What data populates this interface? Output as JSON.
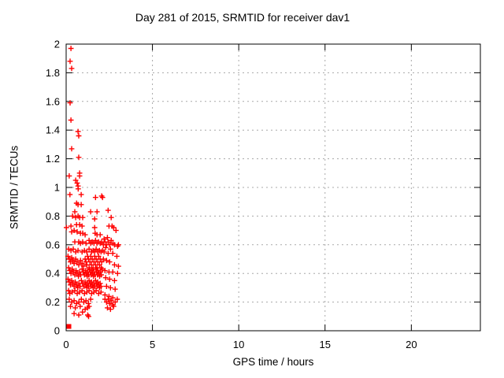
{
  "page": {
    "background": "#ffffff"
  },
  "chart_data": {
    "type": "scatter",
    "title": "Day 281 of 2015, SRMTID for receiver dav1",
    "xlabel": "GPS time / hours",
    "ylabel": "SRMTID / TECUs",
    "xlim": [
      0,
      24
    ],
    "ylim": [
      0,
      2
    ],
    "grid": true,
    "legend": "none",
    "xticks": [
      {
        "v": 0,
        "label": "0"
      },
      {
        "v": 5,
        "label": "5"
      },
      {
        "v": 10,
        "label": "10"
      },
      {
        "v": 15,
        "label": "15"
      },
      {
        "v": 20,
        "label": "20"
      }
    ],
    "yticks": [
      {
        "v": 0,
        "label": "0"
      },
      {
        "v": 0.2,
        "label": "0.2"
      },
      {
        "v": 0.4,
        "label": "0.4"
      },
      {
        "v": 0.6,
        "label": "0.6"
      },
      {
        "v": 0.8,
        "label": "0.8"
      },
      {
        "v": 1,
        "label": "1"
      },
      {
        "v": 1.2,
        "label": "1.2"
      },
      {
        "v": 1.4,
        "label": "1.4"
      },
      {
        "v": 1.6,
        "label": "1.6"
      },
      {
        "v": 1.8,
        "label": "1.8"
      },
      {
        "v": 2,
        "label": "2"
      }
    ],
    "colors": {
      "marker": "#ff0000",
      "grid": "#a8a8a8",
      "axis": "#000000",
      "text": "#000000"
    },
    "series": [
      {
        "name": "SRMTID values",
        "marker": "plus",
        "color": "#ff0000",
        "points": [
          [
            0.28,
            1.97
          ],
          [
            0.23,
            1.88
          ],
          [
            0.32,
            1.83
          ],
          [
            0.23,
            1.59
          ],
          [
            0.28,
            1.47
          ],
          [
            0.32,
            1.27
          ],
          [
            0.18,
            1.08
          ],
          [
            0.69,
            1.39
          ],
          [
            0.73,
            1.36
          ],
          [
            0.73,
            1.21
          ],
          [
            0.78,
            1.1
          ],
          [
            0.78,
            1.08
          ],
          [
            0.55,
            1.05
          ],
          [
            0.64,
            1.03
          ],
          [
            0.69,
            1.01
          ],
          [
            0.7,
            0.99
          ],
          [
            0.87,
            0.95
          ],
          [
            0.22,
            0.95
          ],
          [
            1.7,
            0.93
          ],
          [
            2.06,
            0.94
          ],
          [
            2.11,
            0.93
          ],
          [
            0.6,
            0.89
          ],
          [
            0.69,
            0.88
          ],
          [
            0.87,
            0.88
          ],
          [
            0.5,
            0.83
          ],
          [
            1.42,
            0.83
          ],
          [
            1.79,
            0.83
          ],
          [
            2.43,
            0.84
          ],
          [
            0.37,
            0.8
          ],
          [
            0.55,
            0.79
          ],
          [
            0.69,
            0.8
          ],
          [
            0.78,
            0.79
          ],
          [
            0.96,
            0.79
          ],
          [
            1.65,
            0.78
          ],
          [
            2.61,
            0.79
          ],
          [
            0.02,
            0.72
          ],
          [
            0.28,
            0.73
          ],
          [
            0.6,
            0.74
          ],
          [
            0.78,
            0.74
          ],
          [
            0.92,
            0.73
          ],
          [
            1.65,
            0.72
          ],
          [
            2.48,
            0.73
          ],
          [
            2.66,
            0.73
          ],
          [
            2.75,
            0.72
          ],
          [
            2.89,
            0.7
          ],
          [
            0.32,
            0.69
          ],
          [
            0.46,
            0.7
          ],
          [
            0.64,
            0.69
          ],
          [
            0.83,
            0.68
          ],
          [
            0.96,
            0.68
          ],
          [
            1.1,
            0.67
          ],
          [
            1.68,
            0.68
          ],
          [
            1.79,
            0.67
          ],
          [
            1.97,
            0.67
          ],
          [
            2.2,
            0.64
          ],
          [
            2.39,
            0.65
          ],
          [
            2.61,
            0.63
          ],
          [
            0.5,
            0.62
          ],
          [
            0.73,
            0.62
          ],
          [
            0.83,
            0.61
          ],
          [
            0.96,
            0.62
          ],
          [
            1.15,
            0.61
          ],
          [
            1.33,
            0.63
          ],
          [
            1.42,
            0.61
          ],
          [
            1.51,
            0.62
          ],
          [
            1.61,
            0.61
          ],
          [
            1.7,
            0.63
          ],
          [
            1.79,
            0.61
          ],
          [
            1.88,
            0.62
          ],
          [
            1.97,
            0.61
          ],
          [
            2.06,
            0.62
          ],
          [
            2.16,
            0.6
          ],
          [
            2.25,
            0.62
          ],
          [
            2.34,
            0.6
          ],
          [
            2.43,
            0.62
          ],
          [
            2.52,
            0.6
          ],
          [
            2.71,
            0.61
          ],
          [
            2.8,
            0.6
          ],
          [
            2.98,
            0.59
          ],
          [
            3.03,
            0.6
          ],
          [
            0.14,
            0.57
          ],
          [
            0.28,
            0.56
          ],
          [
            0.41,
            0.57
          ],
          [
            0.55,
            0.55
          ],
          [
            0.69,
            0.56
          ],
          [
            0.92,
            0.55
          ],
          [
            1.06,
            0.56
          ],
          [
            1.2,
            0.55
          ],
          [
            1.33,
            0.57
          ],
          [
            1.47,
            0.55
          ],
          [
            1.56,
            0.56
          ],
          [
            1.65,
            0.55
          ],
          [
            1.74,
            0.57
          ],
          [
            1.83,
            0.55
          ],
          [
            1.93,
            0.56
          ],
          [
            2.02,
            0.55
          ],
          [
            2.11,
            0.56
          ],
          [
            2.29,
            0.58
          ],
          [
            2.57,
            0.57
          ],
          [
            2.2,
            0.55
          ],
          [
            2.43,
            0.54
          ],
          [
            2.7,
            0.54
          ],
          [
            2.94,
            0.52
          ],
          [
            0.11,
            0.52
          ],
          [
            0.18,
            0.5
          ],
          [
            0.25,
            0.48
          ],
          [
            0.32,
            0.51
          ],
          [
            0.39,
            0.49
          ],
          [
            0.46,
            0.47
          ],
          [
            0.55,
            0.5
          ],
          [
            0.64,
            0.48
          ],
          [
            0.73,
            0.46
          ],
          [
            0.83,
            0.49
          ],
          [
            0.92,
            0.47
          ],
          [
            1.01,
            0.45
          ],
          [
            1.1,
            0.5
          ],
          [
            1.15,
            0.48
          ],
          [
            1.2,
            0.46
          ],
          [
            1.24,
            0.52
          ],
          [
            1.29,
            0.5
          ],
          [
            1.33,
            0.44
          ],
          [
            1.38,
            0.48
          ],
          [
            1.42,
            0.52
          ],
          [
            1.47,
            0.46
          ],
          [
            1.51,
            0.5
          ],
          [
            1.56,
            0.44
          ],
          [
            1.61,
            0.48
          ],
          [
            1.65,
            0.52
          ],
          [
            1.7,
            0.46
          ],
          [
            1.74,
            0.5
          ],
          [
            1.79,
            0.44
          ],
          [
            1.83,
            0.48
          ],
          [
            1.88,
            0.52
          ],
          [
            1.93,
            0.46
          ],
          [
            1.97,
            0.5
          ],
          [
            2.02,
            0.44
          ],
          [
            2.06,
            0.48
          ],
          [
            2.16,
            0.5
          ],
          [
            2.34,
            0.49
          ],
          [
            2.52,
            0.48
          ],
          [
            2.8,
            0.46
          ],
          [
            3.03,
            0.45
          ],
          [
            0.14,
            0.44
          ],
          [
            0.21,
            0.42
          ],
          [
            0.28,
            0.4
          ],
          [
            0.35,
            0.43
          ],
          [
            0.42,
            0.41
          ],
          [
            0.5,
            0.39
          ],
          [
            0.57,
            0.42
          ],
          [
            0.64,
            0.4
          ],
          [
            0.71,
            0.38
          ],
          [
            0.78,
            0.41
          ],
          [
            0.85,
            0.39
          ],
          [
            0.92,
            0.43
          ],
          [
            0.99,
            0.41
          ],
          [
            1.06,
            0.39
          ],
          [
            1.13,
            0.42
          ],
          [
            1.17,
            0.4
          ],
          [
            1.22,
            0.38
          ],
          [
            1.26,
            0.41
          ],
          [
            1.31,
            0.39
          ],
          [
            1.35,
            0.43
          ],
          [
            1.4,
            0.41
          ],
          [
            1.44,
            0.39
          ],
          [
            1.49,
            0.42
          ],
          [
            1.53,
            0.4
          ],
          [
            1.58,
            0.38
          ],
          [
            1.62,
            0.41
          ],
          [
            1.67,
            0.39
          ],
          [
            1.72,
            0.43
          ],
          [
            1.76,
            0.41
          ],
          [
            1.81,
            0.39
          ],
          [
            1.85,
            0.42
          ],
          [
            1.9,
            0.4
          ],
          [
            1.94,
            0.38
          ],
          [
            1.99,
            0.41
          ],
          [
            2.03,
            0.39
          ],
          [
            2.08,
            0.43
          ],
          [
            2.25,
            0.42
          ],
          [
            2.48,
            0.41
          ],
          [
            2.7,
            0.41
          ],
          [
            2.98,
            0.4
          ],
          [
            0.11,
            0.36
          ],
          [
            0.18,
            0.34
          ],
          [
            0.25,
            0.32
          ],
          [
            0.32,
            0.35
          ],
          [
            0.39,
            0.33
          ],
          [
            0.46,
            0.31
          ],
          [
            0.53,
            0.34
          ],
          [
            0.6,
            0.32
          ],
          [
            0.67,
            0.3
          ],
          [
            0.74,
            0.33
          ],
          [
            0.81,
            0.31
          ],
          [
            0.88,
            0.35
          ],
          [
            0.95,
            0.33
          ],
          [
            1.02,
            0.31
          ],
          [
            1.1,
            0.34
          ],
          [
            1.15,
            0.32
          ],
          [
            1.2,
            0.3
          ],
          [
            1.24,
            0.33
          ],
          [
            1.29,
            0.31
          ],
          [
            1.33,
            0.35
          ],
          [
            1.38,
            0.33
          ],
          [
            1.42,
            0.31
          ],
          [
            1.47,
            0.34
          ],
          [
            1.51,
            0.32
          ],
          [
            1.56,
            0.3
          ],
          [
            1.61,
            0.33
          ],
          [
            1.65,
            0.31
          ],
          [
            1.7,
            0.35
          ],
          [
            1.74,
            0.33
          ],
          [
            1.79,
            0.31
          ],
          [
            1.83,
            0.34
          ],
          [
            1.88,
            0.32
          ],
          [
            1.93,
            0.3
          ],
          [
            1.97,
            0.33
          ],
          [
            2.02,
            0.31
          ],
          [
            2.29,
            0.37
          ],
          [
            2.52,
            0.36
          ],
          [
            2.8,
            0.35
          ],
          [
            2.34,
            0.31
          ],
          [
            2.57,
            0.3
          ],
          [
            2.84,
            0.29
          ],
          [
            0.14,
            0.28
          ],
          [
            0.21,
            0.26
          ],
          [
            0.35,
            0.27
          ],
          [
            0.5,
            0.28
          ],
          [
            0.64,
            0.26
          ],
          [
            0.78,
            0.27
          ],
          [
            0.92,
            0.28
          ],
          [
            1.06,
            0.26
          ],
          [
            1.2,
            0.27
          ],
          [
            1.33,
            0.28
          ],
          [
            1.47,
            0.26
          ],
          [
            1.61,
            0.27
          ],
          [
            1.74,
            0.28
          ],
          [
            1.88,
            0.26
          ],
          [
            2.02,
            0.27
          ],
          [
            2.25,
            0.25
          ],
          [
            2.48,
            0.24
          ],
          [
            2.7,
            0.23
          ],
          [
            0.18,
            0.22
          ],
          [
            0.32,
            0.2
          ],
          [
            0.46,
            0.21
          ],
          [
            0.6,
            0.19
          ],
          [
            0.74,
            0.2
          ],
          [
            0.88,
            0.22
          ],
          [
            1.02,
            0.2
          ],
          [
            1.15,
            0.21
          ],
          [
            1.29,
            0.19
          ],
          [
            1.42,
            0.22
          ],
          [
            0.25,
            0.17
          ],
          [
            0.53,
            0.16
          ],
          [
            0.81,
            0.17
          ],
          [
            1.1,
            0.15
          ],
          [
            1.24,
            0.16
          ],
          [
            1.33,
            0.17
          ],
          [
            0.46,
            0.12
          ],
          [
            0.73,
            0.11
          ],
          [
            1.25,
            0.11
          ],
          [
            1.3,
            0.1
          ],
          [
            0.95,
            0.13
          ],
          [
            2.25,
            0.22
          ],
          [
            2.34,
            0.2
          ],
          [
            2.43,
            0.22
          ],
          [
            2.52,
            0.19
          ],
          [
            2.61,
            0.21
          ],
          [
            2.7,
            0.18
          ],
          [
            2.84,
            0.2
          ],
          [
            2.96,
            0.22
          ],
          [
            2.39,
            0.16
          ],
          [
            2.57,
            0.15
          ],
          [
            2.75,
            0.17
          ]
        ]
      },
      {
        "name": "origin marker",
        "marker": "filled-square",
        "color": "#ff0000",
        "points": [
          [
            0.16,
            0.03
          ]
        ]
      }
    ]
  }
}
